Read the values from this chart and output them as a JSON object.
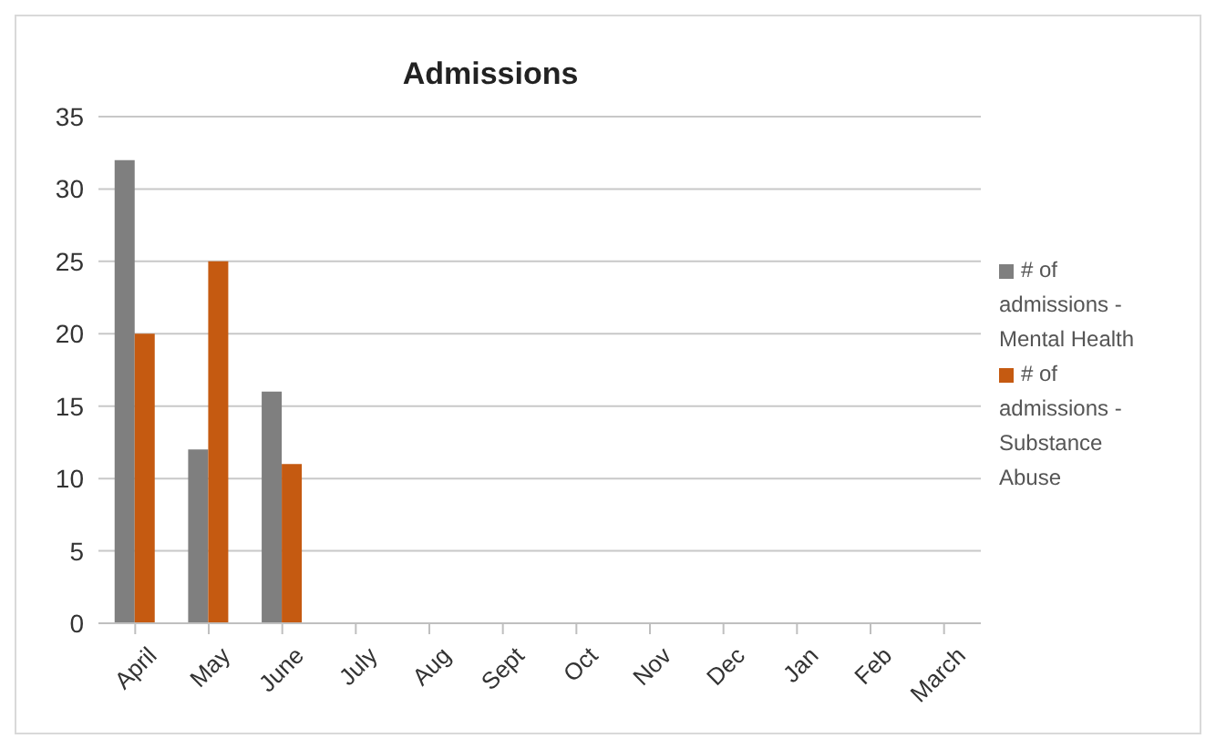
{
  "chart_data": {
    "type": "bar",
    "title": "Admissions",
    "categories": [
      "April",
      "May",
      "June",
      "July",
      "Aug",
      "Sept",
      "Oct",
      "Nov",
      "Dec",
      "Jan",
      "Feb",
      "March"
    ],
    "series": [
      {
        "name": "# of admissions - Mental Health",
        "color": "#7f7f7f",
        "values": [
          32,
          12,
          16,
          null,
          null,
          null,
          null,
          null,
          null,
          null,
          null,
          null
        ]
      },
      {
        "name": "# of admissions - Substance Abuse",
        "color": "#c55a11",
        "values": [
          20,
          25,
          11,
          null,
          null,
          null,
          null,
          null,
          null,
          null,
          null,
          null
        ]
      }
    ],
    "ylim": [
      0,
      35
    ],
    "yticks": [
      0,
      5,
      10,
      15,
      20,
      25,
      30,
      35
    ],
    "grid": "y",
    "legend": "right"
  }
}
